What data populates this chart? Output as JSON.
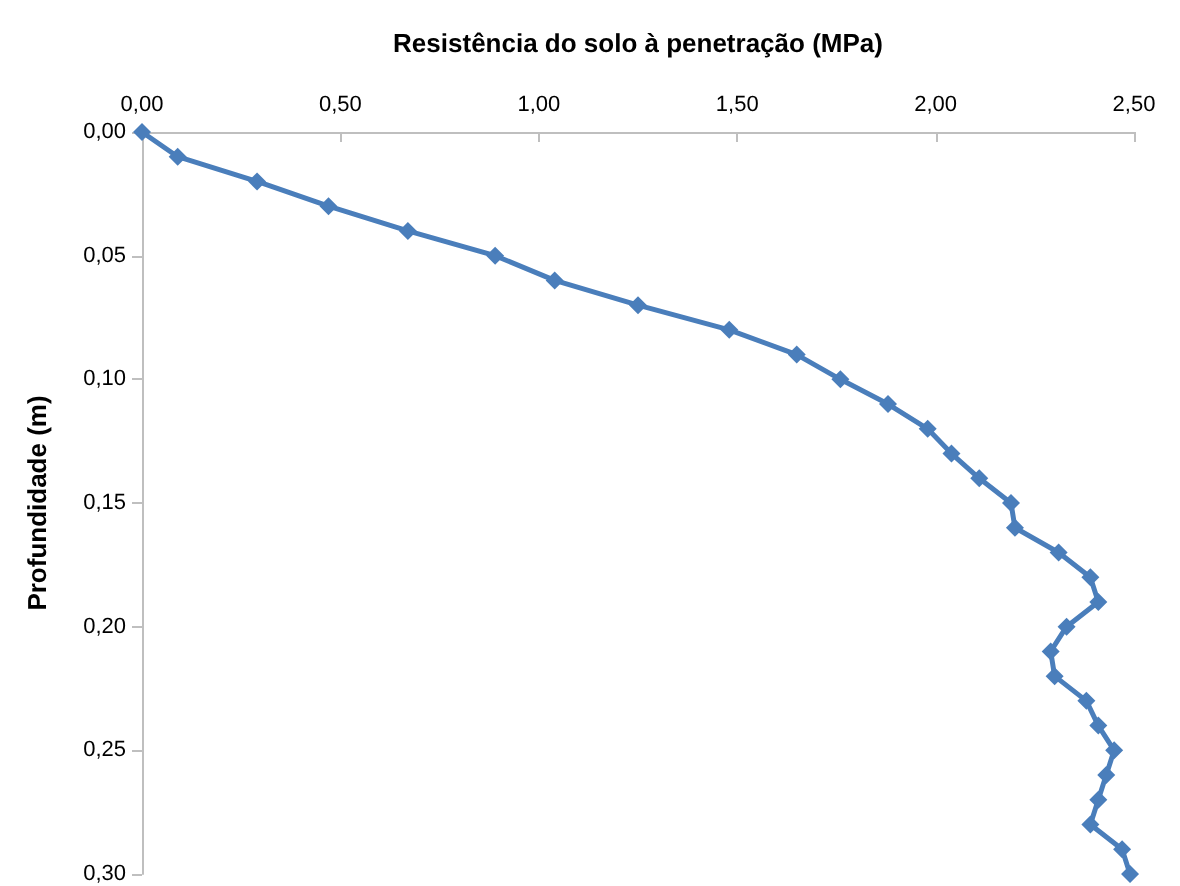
{
  "chart_data": {
    "type": "line",
    "xlabel": "Resistência do solo à penetração (MPa)",
    "ylabel": "Profundidade (m)",
    "xlim": [
      0,
      2.5
    ],
    "xticks": [
      {
        "value": 0,
        "label": "0,00"
      },
      {
        "value": 0.5,
        "label": "0,50"
      },
      {
        "value": 1,
        "label": "1,00"
      },
      {
        "value": 1.5,
        "label": "1,50"
      },
      {
        "value": 2,
        "label": "2,00"
      },
      {
        "value": 2.5,
        "label": "2,50"
      }
    ],
    "ylim": [
      0.3,
      0
    ],
    "yticks": [
      {
        "value": 0,
        "label": "0,00"
      },
      {
        "value": 0.05,
        "label": "0,05"
      },
      {
        "value": 0.1,
        "label": "0,10"
      },
      {
        "value": 0.15,
        "label": "0,15"
      },
      {
        "value": 0.2,
        "label": "0,20"
      },
      {
        "value": 0.25,
        "label": "0,25"
      },
      {
        "value": 0.3,
        "label": "0,30"
      }
    ],
    "grid": false,
    "marker": "diamond",
    "line_style": "solid",
    "series": [
      {
        "color": "#4a7ebb",
        "x": [
          0,
          0.09,
          0.29,
          0.47,
          0.67,
          0.89,
          1.04,
          1.25,
          1.48,
          1.65,
          1.76,
          1.88,
          1.98,
          2.04,
          2.11,
          2.19,
          2.2,
          2.31,
          2.39,
          2.41,
          2.33,
          2.29,
          2.3,
          2.38,
          2.41,
          2.45,
          2.43,
          2.41,
          2.39,
          2.47,
          2.49
        ],
        "values": [
          0,
          0.01,
          0.02,
          0.03,
          0.04,
          0.05,
          0.06,
          0.07,
          0.08,
          0.09,
          0.1,
          0.11,
          0.12,
          0.13,
          0.14,
          0.15,
          0.16,
          0.17,
          0.18,
          0.19,
          0.2,
          0.21,
          0.22,
          0.23,
          0.24,
          0.25,
          0.26,
          0.27,
          0.28,
          0.29,
          0.3
        ]
      }
    ]
  }
}
